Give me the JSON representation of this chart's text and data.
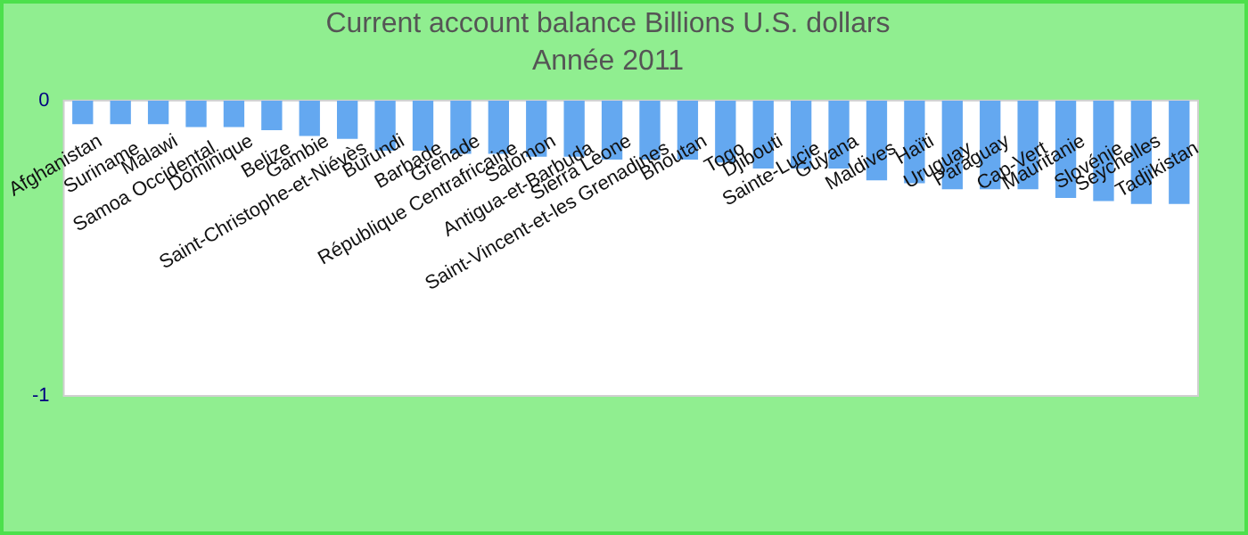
{
  "chart_data": {
    "type": "bar",
    "title": "Current account balance Billions U.S. dollars",
    "subtitle": "Année 2011",
    "categories": [
      "Afghanistan",
      "Suriname",
      "Malawi",
      "Samoa Occidental",
      "Dominique",
      "Belize",
      "Gambie",
      "Saint-Christophe-et-Niévès",
      "Burundi",
      "Barbade",
      "Grenade",
      "République Centrafricaine",
      "Salomon",
      "Antigua-et-Barbuda",
      "Sierra Leone",
      "Saint-Vincent-et-les Grenadines",
      "Bhoutan",
      "Togo",
      "Djibouti",
      "Sainte-Lucie",
      "Guyana",
      "Maldives",
      "Haïti",
      "Uruguay",
      "Paraguay",
      "Cap-Vert",
      "Mauritanie",
      "Slovénie",
      "Seychelles",
      "Tadjikistan"
    ],
    "values": [
      -0.08,
      -0.08,
      -0.08,
      -0.09,
      -0.09,
      -0.1,
      -0.12,
      -0.13,
      -0.17,
      -0.17,
      -0.18,
      -0.18,
      -0.19,
      -0.19,
      -0.2,
      -0.2,
      -0.2,
      -0.21,
      -0.23,
      -0.23,
      -0.23,
      -0.27,
      -0.28,
      -0.3,
      -0.3,
      -0.3,
      -0.33,
      -0.34,
      -0.35,
      -0.35
    ],
    "color": "#64a8f0",
    "ylim": [
      -1,
      0
    ],
    "yticks": [
      -1,
      0
    ],
    "grid": false,
    "legend": false
  }
}
